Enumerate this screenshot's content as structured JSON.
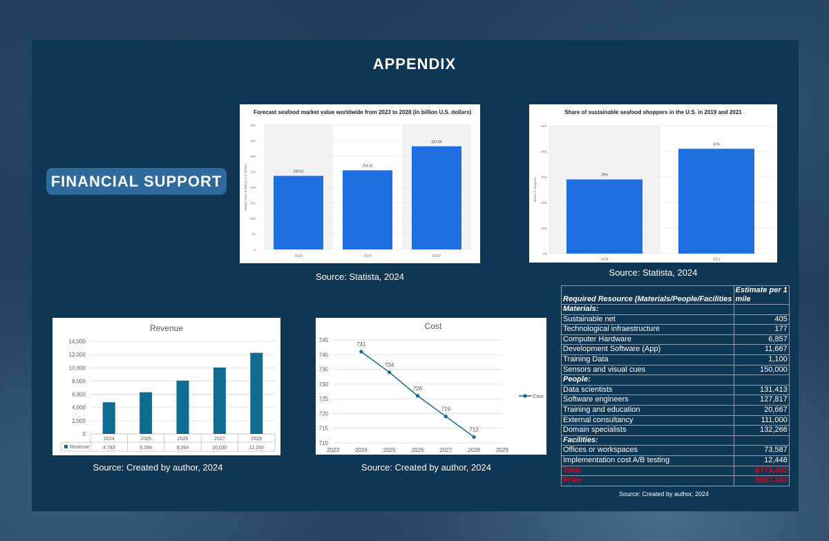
{
  "page": {
    "title": "APPENDIX",
    "section_label": "FINANCIAL SUPPORT"
  },
  "charts": {
    "seafood_market": {
      "title": "Forecast seafood market value worldwide from 2023 to 2028 (in billion U.S. dollars)",
      "ylabel": "Market value in billion U.S. dollars",
      "source": "Source: Statista, 2024"
    },
    "sustainable_shoppers": {
      "title": "Share of sustainable seafood shoppers in the U.S. in 2019 and 2021",
      "ylabel": "Share of shoppers",
      "source": "Source: Statista, 2024"
    },
    "revenue": {
      "title": "Revenue",
      "legend": "Revenue",
      "source": "Source: Created by author, 2024"
    },
    "cost": {
      "title": "Cost",
      "legend": "Cost",
      "source": "Source: Created by author, 2024"
    }
  },
  "chart_data": [
    {
      "type": "bar",
      "title": "Forecast seafood market value worldwide from 2023 to 2028 (in billion U.S. dollars)",
      "ylabel": "Market value in billion U.S. dollars",
      "categories": [
        "2023",
        "2024",
        "2028*"
      ],
      "values": [
        236.61,
        254.42,
        331.64
      ],
      "value_labels": [
        "236.61",
        "254.42",
        "331.64"
      ],
      "ylim": [
        0,
        400
      ],
      "yticks": [
        "0",
        "50",
        "100",
        "150",
        "200",
        "250",
        "300",
        "350",
        "400"
      ],
      "color": "#1f6fe0"
    },
    {
      "type": "bar",
      "title": "Share of sustainable seafood shoppers in the U.S. in 2019 and 2021",
      "ylabel": "Share of shoppers",
      "categories": [
        "2019",
        "2021"
      ],
      "values": [
        29,
        41
      ],
      "value_labels": [
        "29%",
        "41%"
      ],
      "ylim": [
        0,
        50
      ],
      "yticks": [
        "0%",
        "10%",
        "20%",
        "30%",
        "40%",
        "50%"
      ],
      "color": "#1f6fe0"
    },
    {
      "type": "bar",
      "title": "Revenue",
      "categories": [
        "2024",
        "2025",
        "2026",
        "2027",
        "2028"
      ],
      "series": [
        {
          "name": "Revenue",
          "values": [
            4783,
            6298,
            8064,
            10030,
            12260
          ]
        }
      ],
      "table_values": [
        "4,783",
        "6,298",
        "8,064",
        "10,030",
        "12,260"
      ],
      "ylim": [
        0,
        14000
      ],
      "yticks": [
        "0",
        "2,000",
        "4,000",
        "6,000",
        "8,000",
        "10,000",
        "12,000",
        "14,000"
      ],
      "color": "#0f6b8f"
    },
    {
      "type": "line",
      "title": "Cost",
      "x": [
        2024,
        2025,
        2026,
        2027,
        2028
      ],
      "series": [
        {
          "name": "Cost",
          "values": [
            741,
            734,
            726,
            719,
            712
          ]
        }
      ],
      "xlim": [
        2023,
        2029
      ],
      "xticks": [
        "2023",
        "2024",
        "2025",
        "2026",
        "2027",
        "2028",
        "2029"
      ],
      "ylim": [
        710,
        745
      ],
      "yticks": [
        "710",
        "715",
        "720",
        "725",
        "730",
        "735",
        "740",
        "745"
      ],
      "color": "#0f6b8f"
    }
  ],
  "resource_table": {
    "col1_header": "Required Resource (Materials/People/Facilities",
    "col2_header_line1": "Estimate per 1",
    "col2_header_line2": "mile",
    "rows": [
      {
        "label": "Materials:",
        "value": "",
        "kind": "section"
      },
      {
        "label": "Sustainable net",
        "value": "405",
        "kind": "item"
      },
      {
        "label": "Technological infraestructure",
        "value": "177",
        "kind": "item"
      },
      {
        "label": "Computer Hardware",
        "value": "6,857",
        "kind": "item"
      },
      {
        "label": "Development Software (App)",
        "value": "11,667",
        "kind": "item"
      },
      {
        "label": "Training Data",
        "value": "1,100",
        "kind": "item"
      },
      {
        "label": "Sensors and visual cues",
        "value": "150,000",
        "kind": "item"
      },
      {
        "label": "People:",
        "value": "",
        "kind": "section"
      },
      {
        "label": "Data scientists",
        "value": "131,413",
        "kind": "item"
      },
      {
        "label": "Software engineers",
        "value": "127,817",
        "kind": "item"
      },
      {
        "label": "Training and education",
        "value": "20,667",
        "kind": "item"
      },
      {
        "label": "External consultancy",
        "value": "111,000",
        "kind": "item"
      },
      {
        "label": "Domain specialists",
        "value": "132,266",
        "kind": "item"
      },
      {
        "label": "Facilities:",
        "value": "",
        "kind": "section"
      },
      {
        "label": "Offices or workspaces",
        "value": "73,587",
        "kind": "item"
      },
      {
        "label": "Implementation cost A/B testing",
        "value": "12,448",
        "kind": "item"
      },
      {
        "label": "Total",
        "value": "$779,402",
        "kind": "red"
      },
      {
        "label": "Price",
        "value": "$857,342",
        "kind": "red"
      }
    ],
    "source": "Source: Created by author, 2024"
  }
}
